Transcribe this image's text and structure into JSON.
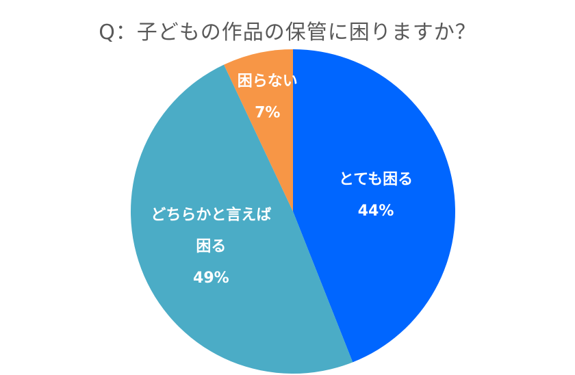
{
  "chart_data": {
    "type": "pie",
    "title": "Q：子どもの作品の保管に困りますか？",
    "slices": [
      {
        "label_lines": [
          "とても困る"
        ],
        "value": 44,
        "value_label": "44%",
        "color": "#0066FF"
      },
      {
        "label_lines": [
          "どちらかと言えば",
          "困る"
        ],
        "value": 49,
        "value_label": "49%",
        "color": "#4BACC6"
      },
      {
        "label_lines": [
          "困らない"
        ],
        "value": 7,
        "value_label": "7%",
        "color": "#F79646"
      }
    ],
    "start_angle_deg": 0,
    "direction": "clockwise",
    "legend": "none"
  }
}
